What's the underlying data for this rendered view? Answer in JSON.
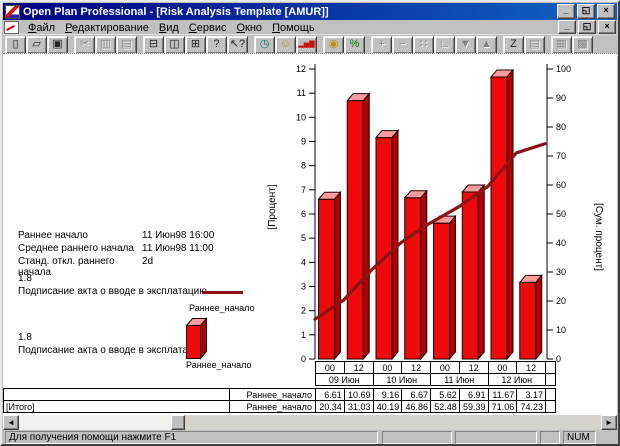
{
  "window": {
    "title": "Open Plan Professional - [Risk Analysis Template [AMUR]]",
    "controls": {
      "minimize": "_",
      "restore": "◱",
      "close": "×"
    }
  },
  "menu": {
    "items": [
      "Файл",
      "Редактирование",
      "Вид",
      "Сервис",
      "Окно",
      "Помощь"
    ]
  },
  "toolbar": {
    "groups": [
      [
        {
          "name": "new-document",
          "glyph": "▯",
          "enabled": true,
          "color": "#222222"
        },
        {
          "name": "open-folder",
          "glyph": "▱",
          "enabled": true,
          "color": "#222222"
        },
        {
          "name": "save",
          "glyph": "▣",
          "enabled": true,
          "color": "#222222"
        }
      ],
      [
        {
          "name": "cut",
          "glyph": "✂",
          "enabled": false
        },
        {
          "name": "copy",
          "glyph": "▥",
          "enabled": false
        },
        {
          "name": "paste",
          "glyph": "▤",
          "enabled": false
        }
      ],
      [
        {
          "name": "print",
          "glyph": "⊟",
          "enabled": true,
          "color": "#222222"
        },
        {
          "name": "print-preview",
          "glyph": "◫",
          "enabled": true,
          "color": "#222222"
        },
        {
          "name": "table-view",
          "glyph": "⊞",
          "enabled": true,
          "color": "#222222"
        },
        {
          "name": "help",
          "glyph": "?",
          "enabled": true,
          "color": "#222222"
        },
        {
          "name": "context-help",
          "glyph": "↖?",
          "enabled": true,
          "color": "#222222"
        }
      ],
      [
        {
          "name": "time-analysis-clock",
          "glyph": "◷",
          "enabled": true,
          "color": "#007a7a"
        },
        {
          "name": "resource-analysis",
          "glyph": "☺",
          "enabled": true,
          "color": "#c49000"
        },
        {
          "name": "risk-histogram",
          "glyph": "▂▅▇",
          "enabled": true,
          "color": "#cc1111"
        }
      ],
      [
        {
          "name": "cost",
          "glyph": "◉",
          "enabled": true,
          "color": "#c49000"
        },
        {
          "name": "percent-complete",
          "glyph": "%",
          "enabled": true,
          "color": "#0a7a0a"
        }
      ],
      [
        {
          "name": "add-activity",
          "glyph": "+",
          "enabled": false
        },
        {
          "name": "remove-activity",
          "glyph": "−",
          "enabled": false
        },
        {
          "name": "link-activities",
          "glyph": "∷",
          "enabled": false
        },
        {
          "name": "unlink-activities",
          "glyph": "∟",
          "enabled": false
        },
        {
          "name": "move-down",
          "glyph": "▼",
          "enabled": false
        },
        {
          "name": "move-up",
          "glyph": "▲",
          "enabled": false
        }
      ],
      [
        {
          "name": "sort",
          "glyph": "Z",
          "enabled": true,
          "color": "#222222"
        },
        {
          "name": "notes",
          "glyph": "▤",
          "enabled": false
        }
      ],
      [
        {
          "name": "layout-tile",
          "glyph": "▦",
          "enabled": false
        },
        {
          "name": "layout-cascade",
          "glyph": "▩",
          "enabled": false
        }
      ]
    ]
  },
  "info_panel": {
    "rows": [
      {
        "label": "Раннее начало",
        "value": "11 Июн98 16:00"
      },
      {
        "label": "Среднее раннего начала",
        "value": "11 Июн98 11:00"
      },
      {
        "label": "Станд. откл. раннего начала",
        "value": "2d"
      }
    ]
  },
  "legend": {
    "entries": [
      {
        "value": "1.8",
        "activity": "Подписание акта о вводе в эксплатацию",
        "series": "Раннее_начало",
        "swatch": "line"
      },
      {
        "value": "1.8",
        "activity": "Подписание акта о вводе в эксплатацию",
        "series": "Раннее_начало",
        "swatch": "bar"
      }
    ]
  },
  "chart_data": {
    "type": "bar",
    "x_hours": [
      "00",
      "12",
      "00",
      "12",
      "00",
      "12",
      "00",
      "12"
    ],
    "x_dates": [
      "09 Июн",
      "10 Июн",
      "11 Июн",
      "12 Июн"
    ],
    "left_axis": {
      "label": "[Процент]",
      "min": 0,
      "max": 12,
      "step": 1
    },
    "right_axis": {
      "label": "[Сум. процент]",
      "min": 0,
      "max": 100,
      "step": 10
    },
    "grid": false,
    "legend_position": "left",
    "series": [
      {
        "name": "Раннее_начало",
        "type": "bar",
        "axis": "left",
        "color": "#ee0a0a",
        "top_color": "#ff9c9c",
        "side_color": "#b00000",
        "values": [
          6.61,
          10.69,
          9.16,
          6.67,
          5.62,
          6.91,
          11.67,
          3.17
        ]
      },
      {
        "name": "Раннее_начало",
        "type": "line",
        "axis": "right",
        "color": "#8b1414",
        "start_value": 13.73,
        "values": [
          20.34,
          31.03,
          40.19,
          46.86,
          52.48,
          59.39,
          71.06,
          74.23
        ]
      }
    ]
  },
  "table": {
    "total_label": "[Итого]"
  },
  "scrollbar": {
    "left_arrow": "◄",
    "right_arrow": "►"
  },
  "status_bar": {
    "message": "Для получения помощи нажмите F1",
    "num": "NUM"
  }
}
